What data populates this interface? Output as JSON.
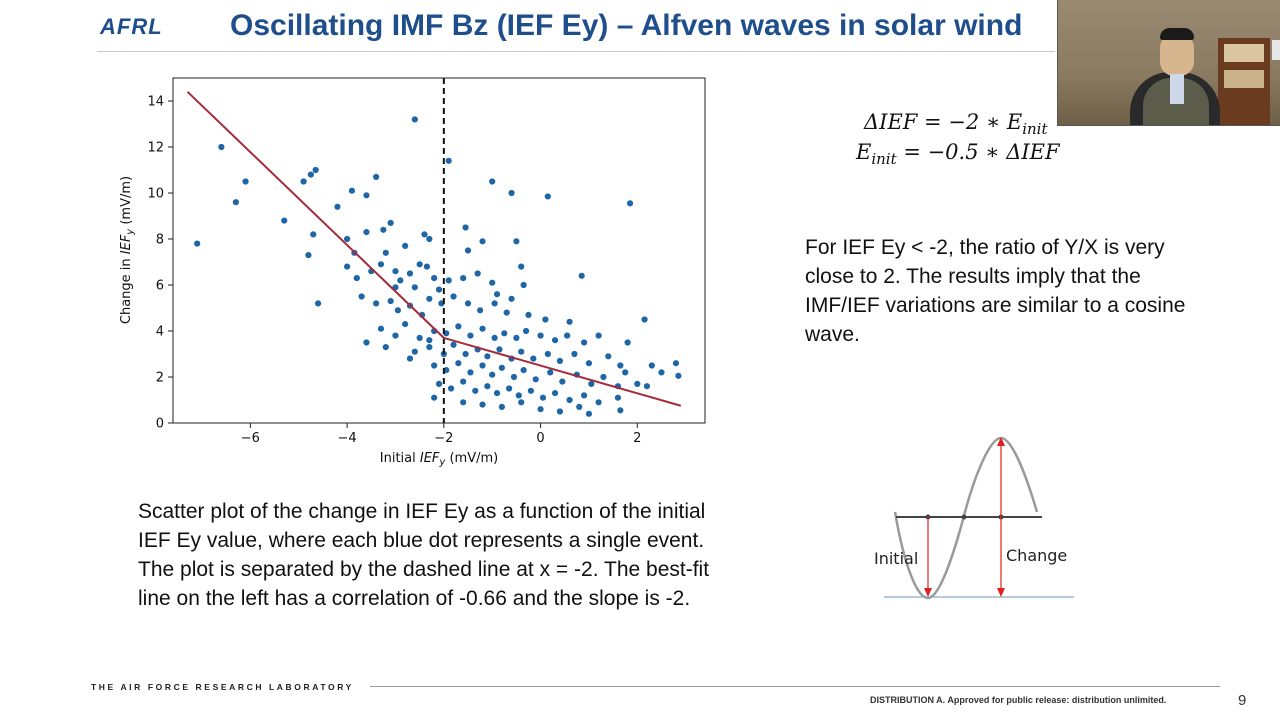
{
  "header": {
    "logo_text": "AFRL",
    "title": "Oscillating IMF Bz (IEF Ey) – Alfven waves in solar wind"
  },
  "formulas": {
    "line1": {
      "lhs": "ΔIEF = −2 ∗ E",
      "sub": "init"
    },
    "line2": {
      "lhs": "E",
      "sub": "init",
      "rhs": " = −0.5 ∗ ΔIEF"
    }
  },
  "note_text": "For IEF Ey < -2, the ratio of Y/X is very close to 2. The results imply that the IMF/IEF variations are similar to a cosine wave.",
  "caption_text": "Scatter plot of the change in IEF Ey as a function of the initial IEF Ey value, where each blue dot represents a single event. The plot is separated by the dashed line at x = -2. The best-fit line on the left has a correlation of -0.66 and the slope is -2.",
  "wave_diagram": {
    "initial_label": "Initial",
    "change_label": "Change"
  },
  "footer": {
    "org": "THE AIR FORCE RESEARCH LABORATORY",
    "distribution": "DISTRIBUTION A. Approved for public release: distribution unlimited.",
    "page_number": "9"
  },
  "chart_data": {
    "type": "scatter",
    "title": "",
    "xlabel": "Initial IEF_y (mV/m)",
    "ylabel": "Change in IEF_y (mV/m)",
    "xlim": [
      -7.6,
      3.4
    ],
    "ylim": [
      0,
      15
    ],
    "xticks": [
      -6,
      -4,
      -2,
      0,
      2
    ],
    "yticks": [
      0,
      2,
      4,
      6,
      8,
      10,
      12,
      14
    ],
    "dashed_vline_x": -2,
    "point_color": "#1f66a6",
    "fit_line_color": "#a52a3a",
    "fit_line": [
      [
        -7.3,
        14.4
      ],
      [
        -2.0,
        3.7
      ],
      [
        2.9,
        0.75
      ]
    ],
    "points": [
      [
        -7.1,
        7.8
      ],
      [
        -6.6,
        12.0
      ],
      [
        -6.3,
        9.6
      ],
      [
        -6.1,
        10.5
      ],
      [
        -5.3,
        8.8
      ],
      [
        -4.9,
        10.5
      ],
      [
        -4.8,
        7.3
      ],
      [
        -4.75,
        10.8
      ],
      [
        -4.65,
        11.0
      ],
      [
        -4.7,
        8.2
      ],
      [
        -4.6,
        5.2
      ],
      [
        -4.2,
        9.4
      ],
      [
        -4.0,
        8.0
      ],
      [
        -3.9,
        10.1
      ],
      [
        -3.6,
        9.9
      ],
      [
        -3.4,
        10.7
      ],
      [
        -2.6,
        13.2
      ],
      [
        -1.9,
        11.4
      ],
      [
        -1.0,
        10.5
      ],
      [
        -0.6,
        10.0
      ],
      [
        0.15,
        9.85
      ],
      [
        1.85,
        9.55
      ],
      [
        0.85,
        6.4
      ],
      [
        2.15,
        4.5
      ],
      [
        -3.1,
        8.7
      ],
      [
        -3.25,
        8.4
      ],
      [
        -3.6,
        8.3
      ],
      [
        -3.85,
        7.4
      ],
      [
        -2.4,
        8.2
      ],
      [
        -2.8,
        7.7
      ],
      [
        -3.2,
        7.4
      ],
      [
        -2.3,
        8.0
      ],
      [
        -1.5,
        7.5
      ],
      [
        -1.55,
        8.5
      ],
      [
        -1.2,
        7.9
      ],
      [
        -0.5,
        7.9
      ],
      [
        -0.4,
        6.8
      ],
      [
        -3.5,
        6.6
      ],
      [
        -3.0,
        6.6
      ],
      [
        -2.7,
        6.5
      ],
      [
        -2.2,
        6.3
      ],
      [
        -3.8,
        6.3
      ],
      [
        -4.0,
        6.8
      ],
      [
        -2.5,
        6.9
      ],
      [
        -3.3,
        6.9
      ],
      [
        -2.9,
        6.2
      ],
      [
        -2.6,
        5.9
      ],
      [
        -1.9,
        6.2
      ],
      [
        -2.1,
        5.8
      ],
      [
        -1.6,
        6.3
      ],
      [
        -1.3,
        6.5
      ],
      [
        -1.0,
        6.1
      ],
      [
        -0.9,
        5.6
      ],
      [
        -0.6,
        5.4
      ],
      [
        -0.35,
        6.0
      ],
      [
        -3.7,
        5.5
      ],
      [
        -3.4,
        5.2
      ],
      [
        -3.1,
        5.3
      ],
      [
        -2.95,
        4.9
      ],
      [
        -2.7,
        5.1
      ],
      [
        -2.45,
        4.7
      ],
      [
        -2.3,
        5.4
      ],
      [
        -2.05,
        5.2
      ],
      [
        -1.8,
        5.5
      ],
      [
        -1.5,
        5.2
      ],
      [
        -1.25,
        4.9
      ],
      [
        -0.95,
        5.2
      ],
      [
        -0.7,
        4.8
      ],
      [
        -0.25,
        4.7
      ],
      [
        0.1,
        4.5
      ],
      [
        0.6,
        4.4
      ],
      [
        -3.3,
        4.1
      ],
      [
        -3.0,
        3.8
      ],
      [
        -2.8,
        4.3
      ],
      [
        -2.5,
        3.7
      ],
      [
        -2.2,
        4.0
      ],
      [
        -1.95,
        3.9
      ],
      [
        -1.7,
        4.2
      ],
      [
        -1.45,
        3.8
      ],
      [
        -1.2,
        4.1
      ],
      [
        -0.95,
        3.7
      ],
      [
        -0.75,
        3.9
      ],
      [
        -0.5,
        3.7
      ],
      [
        -0.3,
        4.0
      ],
      [
        0.0,
        3.8
      ],
      [
        0.3,
        3.6
      ],
      [
        0.55,
        3.8
      ],
      [
        0.9,
        3.5
      ],
      [
        1.2,
        3.8
      ],
      [
        1.8,
        3.5
      ],
      [
        -3.6,
        3.5
      ],
      [
        -3.2,
        3.3
      ],
      [
        -2.6,
        3.1
      ],
      [
        -2.3,
        3.3
      ],
      [
        -2.0,
        3.0
      ],
      [
        -1.8,
        3.4
      ],
      [
        -1.55,
        3.0
      ],
      [
        -1.3,
        3.2
      ],
      [
        -1.1,
        2.9
      ],
      [
        -0.85,
        3.2
      ],
      [
        -0.6,
        2.8
      ],
      [
        -0.4,
        3.1
      ],
      [
        -0.15,
        2.8
      ],
      [
        0.15,
        3.0
      ],
      [
        0.4,
        2.7
      ],
      [
        0.7,
        3.0
      ],
      [
        1.0,
        2.6
      ],
      [
        1.4,
        2.9
      ],
      [
        1.65,
        2.5
      ],
      [
        2.3,
        2.5
      ],
      [
        2.5,
        2.2
      ],
      [
        -2.2,
        2.5
      ],
      [
        -1.95,
        2.3
      ],
      [
        -1.7,
        2.6
      ],
      [
        -1.45,
        2.2
      ],
      [
        -1.2,
        2.5
      ],
      [
        -1.0,
        2.1
      ],
      [
        -0.8,
        2.4
      ],
      [
        -0.55,
        2.0
      ],
      [
        -0.35,
        2.3
      ],
      [
        -0.1,
        1.9
      ],
      [
        0.2,
        2.2
      ],
      [
        0.45,
        1.8
      ],
      [
        0.75,
        2.1
      ],
      [
        1.05,
        1.7
      ],
      [
        1.3,
        2.0
      ],
      [
        1.6,
        1.6
      ],
      [
        2.0,
        1.7
      ],
      [
        2.8,
        2.6
      ],
      [
        2.85,
        2.05
      ],
      [
        1.75,
        2.2
      ],
      [
        -2.1,
        1.7
      ],
      [
        -1.85,
        1.5
      ],
      [
        -1.6,
        1.8
      ],
      [
        -1.35,
        1.4
      ],
      [
        -1.1,
        1.6
      ],
      [
        -0.9,
        1.3
      ],
      [
        -0.65,
        1.5
      ],
      [
        -0.45,
        1.2
      ],
      [
        -0.2,
        1.4
      ],
      [
        0.05,
        1.1
      ],
      [
        0.3,
        1.3
      ],
      [
        0.6,
        1.0
      ],
      [
        0.9,
        1.2
      ],
      [
        1.2,
        0.9
      ],
      [
        1.6,
        1.1
      ],
      [
        2.2,
        1.6
      ],
      [
        -1.6,
        0.9
      ],
      [
        -1.2,
        0.8
      ],
      [
        -0.8,
        0.7
      ],
      [
        -0.4,
        0.9
      ],
      [
        0.0,
        0.6
      ],
      [
        0.4,
        0.5
      ],
      [
        0.8,
        0.7
      ],
      [
        1.0,
        0.4
      ],
      [
        1.65,
        0.55
      ],
      [
        -2.2,
        1.1
      ],
      [
        -2.3,
        3.6
      ],
      [
        -2.7,
        2.8
      ],
      [
        -3.0,
        5.9
      ],
      [
        -2.35,
        6.8
      ]
    ]
  }
}
